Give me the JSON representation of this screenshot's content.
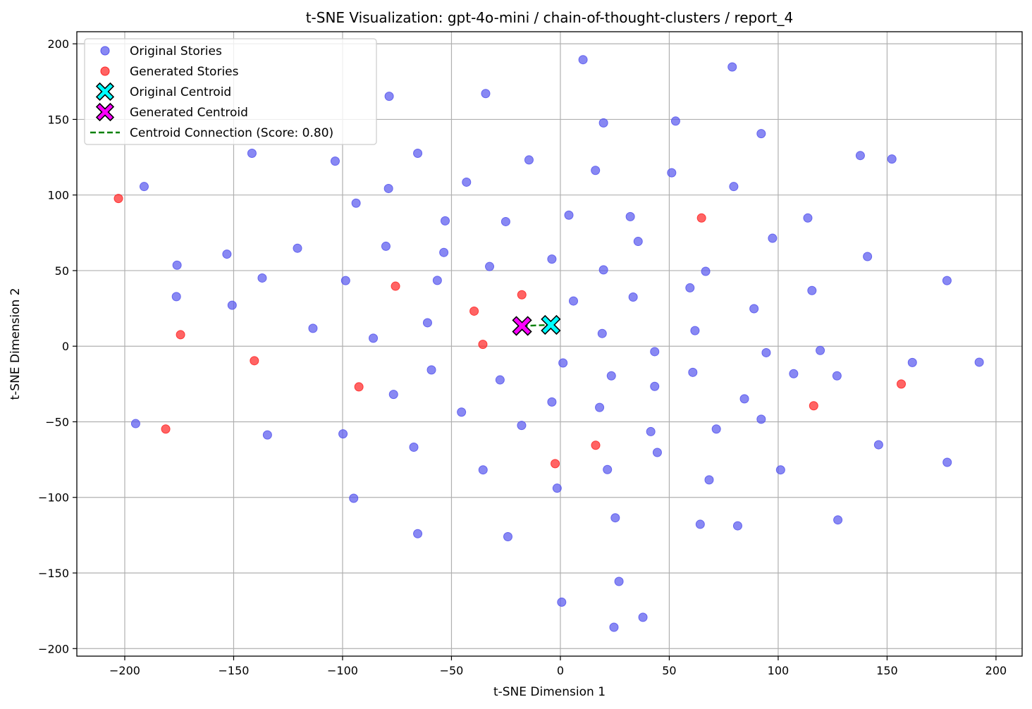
{
  "chart_data": {
    "type": "scatter",
    "title": "t-SNE Visualization: gpt-4o-mini / chain-of-thought-clusters / report_4",
    "xlabel": "t-SNE Dimension 1",
    "ylabel": "t-SNE Dimension 2",
    "xlim": [
      -222,
      212
    ],
    "ylim": [
      -205,
      208
    ],
    "xticks": [
      -200,
      -150,
      -100,
      -50,
      0,
      50,
      100,
      150,
      200
    ],
    "yticks": [
      -200,
      -150,
      -100,
      -50,
      0,
      50,
      100,
      150,
      200
    ],
    "tick_labels_x": [
      "−200",
      "−150",
      "−100",
      "−50",
      "0",
      "50",
      "100",
      "150",
      "200"
    ],
    "tick_labels_y": [
      "−200",
      "−150",
      "−100",
      "−50",
      "0",
      "50",
      "100",
      "150",
      "200"
    ],
    "grid": true,
    "legend_position": "top-left",
    "series": [
      {
        "name": "Original Stories",
        "color": "#5555ee",
        "points": [
          [
            10.4,
            189.5
          ],
          [
            78.9,
            184.7
          ],
          [
            -78.6,
            165.3
          ],
          [
            -34.3,
            167.1
          ],
          [
            19.8,
            147.7
          ],
          [
            52.9,
            148.9
          ],
          [
            92.2,
            140.6
          ],
          [
            -141.6,
            127.6
          ],
          [
            -65.5,
            127.6
          ],
          [
            -103.4,
            122.4
          ],
          [
            -14.4,
            123.2
          ],
          [
            16.1,
            116.3
          ],
          [
            51.1,
            114.7
          ],
          [
            137.7,
            126.1
          ],
          [
            152.2,
            123.8
          ],
          [
            -191.1,
            105.6
          ],
          [
            -78.9,
            104.3
          ],
          [
            -43.1,
            108.5
          ],
          [
            79.6,
            105.6
          ],
          [
            -93.8,
            94.6
          ],
          [
            3.9,
            86.7
          ],
          [
            32.1,
            85.7
          ],
          [
            113.6,
            84.8
          ],
          [
            -52.9,
            82.9
          ],
          [
            -25.1,
            82.4
          ],
          [
            97.4,
            71.4
          ],
          [
            35.7,
            69.3
          ],
          [
            -153.1,
            60.9
          ],
          [
            -120.7,
            64.8
          ],
          [
            -80.1,
            66.1
          ],
          [
            -53.5,
            62.0
          ],
          [
            141.0,
            59.3
          ],
          [
            -176.0,
            53.6
          ],
          [
            -32.5,
            52.7
          ],
          [
            -3.9,
            57.6
          ],
          [
            19.8,
            50.5
          ],
          [
            66.7,
            49.5
          ],
          [
            -136.9,
            45.1
          ],
          [
            -98.6,
            43.4
          ],
          [
            -56.5,
            43.5
          ],
          [
            177.5,
            43.4
          ],
          [
            59.5,
            38.6
          ],
          [
            115.5,
            36.8
          ],
          [
            -176.3,
            32.8
          ],
          [
            33.4,
            32.5
          ],
          [
            6.0,
            29.9
          ],
          [
            -150.7,
            27.1
          ],
          [
            88.9,
            24.8
          ],
          [
            -61.0,
            15.5
          ],
          [
            -113.6,
            11.8
          ],
          [
            61.8,
            10.3
          ],
          [
            19.2,
            8.4
          ],
          [
            -85.9,
            5.3
          ],
          [
            43.3,
            -3.6
          ],
          [
            94.5,
            -4.3
          ],
          [
            119.3,
            -2.8
          ],
          [
            161.6,
            -10.8
          ],
          [
            192.3,
            -10.6
          ],
          [
            1.2,
            -11.1
          ],
          [
            -59.2,
            -15.7
          ],
          [
            60.8,
            -17.3
          ],
          [
            107.1,
            -18.2
          ],
          [
            23.4,
            -19.6
          ],
          [
            127.0,
            -19.6
          ],
          [
            -27.7,
            -22.3
          ],
          [
            43.3,
            -26.6
          ],
          [
            -76.6,
            -31.9
          ],
          [
            84.5,
            -34.8
          ],
          [
            -3.9,
            -36.9
          ],
          [
            18.0,
            -40.5
          ],
          [
            -45.4,
            -43.6
          ],
          [
            92.2,
            -48.3
          ],
          [
            -195.0,
            -51.2
          ],
          [
            -17.8,
            -52.4
          ],
          [
            71.6,
            -54.8
          ],
          [
            41.5,
            -56.5
          ],
          [
            -134.5,
            -58.7
          ],
          [
            -99.8,
            -58.0
          ],
          [
            146.1,
            -65.2
          ],
          [
            -67.3,
            -66.8
          ],
          [
            44.5,
            -70.3
          ],
          [
            177.6,
            -76.8
          ],
          [
            -35.5,
            -81.8
          ],
          [
            21.6,
            -81.6
          ],
          [
            101.1,
            -81.8
          ],
          [
            68.3,
            -88.4
          ],
          [
            -1.5,
            -93.9
          ],
          [
            -94.9,
            -100.6
          ],
          [
            25.2,
            -113.5
          ],
          [
            127.4,
            -114.9
          ],
          [
            64.2,
            -117.8
          ],
          [
            81.4,
            -118.8
          ],
          [
            -65.5,
            -124.0
          ],
          [
            -24.1,
            -126.0
          ],
          [
            26.9,
            -155.6
          ],
          [
            0.6,
            -169.3
          ],
          [
            37.9,
            -179.3
          ],
          [
            24.6,
            -185.9
          ]
        ]
      },
      {
        "name": "Generated Stories",
        "color": "#ff2222",
        "points": [
          [
            -202.9,
            97.7
          ],
          [
            64.8,
            84.8
          ],
          [
            -75.7,
            39.7
          ],
          [
            -17.7,
            34.0
          ],
          [
            -39.6,
            23.2
          ],
          [
            -174.4,
            7.6
          ],
          [
            -35.6,
            1.2
          ],
          [
            -140.5,
            -9.6
          ],
          [
            -92.5,
            -26.9
          ],
          [
            156.5,
            -25.0
          ],
          [
            116.3,
            -39.4
          ],
          [
            -181.2,
            -54.8
          ],
          [
            16.2,
            -65.5
          ],
          [
            -2.4,
            -77.7
          ]
        ]
      }
    ],
    "centroids": [
      {
        "name": "Original Centroid",
        "x": -4.4,
        "y": 14.1,
        "color": "#00ffff"
      },
      {
        "name": "Generated Centroid",
        "x": -17.6,
        "y": 13.4,
        "color": "#ff00ff"
      }
    ],
    "connection": {
      "name": "Centroid Connection (Score: 0.80)",
      "color": "#008000",
      "style": "dashed"
    }
  }
}
